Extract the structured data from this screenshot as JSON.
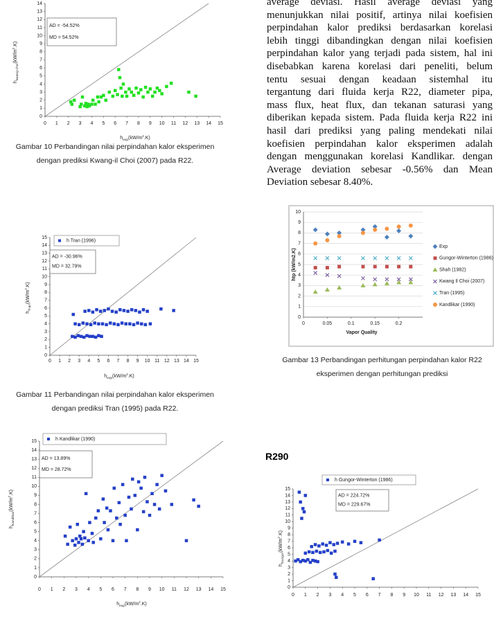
{
  "paragraph": [
    "average deviasi. Hasil average deviasi yang",
    "menunjukkan nilai positif, artinya nilai koefisien",
    "perpindahan kalor prediksi berdasarkan korelasi",
    "lebih tinggi dibandingkan dengan nilai koefisien",
    "perpindahan kalor yang terjadi pada sistem, hal ini",
    "disebabkan karena korelasi dari peneliti, belum",
    "tentu sesuai dengan keadaan sistemhal itu",
    "tergantung dari fluida kerja R22, diameter pipa,",
    "mass flux, heat flux, dan tekanan saturasi yang",
    "diberikan kepada sistem. Pada fluida kerja R22 ini",
    "hasil dari prediksi yang paling mendekati nilai",
    "koefisien perpindahan kalor eksperimen adalah",
    "dengan menggunakan korelasi Kandlikar. dengan",
    "Average deviation sebesar -0.56% dan Mean",
    "Deviation sebesar 8.40%."
  ],
  "captions": [
    [
      "Gambar 10 Perbandingan nilai perpindahan kalor eksperimen",
      "dengan prediksi Kwang-il Choi (2007) pada R22."
    ],
    [
      "Gambar 11 Perbandingan nilai perpindahan kalor eksperimen",
      "dengan prediksi Tran (1995) pada R22."
    ],
    [
      "Gambar 13 Perbandingan perhitungan perpindahan kalor R22",
      "eksperimen dengan perhitungan prediksi"
    ]
  ],
  "heading": "R290",
  "chart_data": [
    {
      "type": "scatter",
      "xlabel": [
        "h",
        "exp",
        "(kW/m",
        "2",
        ".K)"
      ],
      "ylabel": [
        "h",
        "kwang-choi",
        "(kW/m",
        "2",
        ".K)"
      ],
      "annotations": [
        "AD = -54.52%",
        "MD = 54.52%"
      ],
      "xlim": [
        0,
        15
      ],
      "ylim": [
        0,
        14
      ],
      "xticks": [
        0,
        1,
        2,
        3,
        4,
        5,
        6,
        7,
        8,
        9,
        10,
        11,
        12,
        13,
        14,
        15
      ],
      "yticks": [
        0,
        1,
        2,
        3,
        4,
        5,
        6,
        7,
        8,
        9,
        10,
        11,
        12,
        13,
        14
      ],
      "diagonal": true,
      "grid": false,
      "series": [
        {
          "color": "#22e022",
          "marker": "square",
          "x": [
            2.2,
            2.3,
            2.5,
            3.0,
            3.1,
            3.2,
            3.4,
            3.5,
            3.6,
            3.7,
            3.8,
            4.0,
            4.1,
            4.3,
            4.5,
            4.6,
            4.8,
            5.0,
            5.2,
            5.5,
            5.8,
            6.0,
            6.2,
            6.3,
            6.4,
            6.5,
            6.6,
            6.7,
            6.9,
            7.0,
            7.2,
            7.4,
            7.6,
            7.8,
            8.0,
            8.2,
            8.4,
            8.6,
            8.8,
            9.0,
            9.2,
            9.4,
            9.6,
            9.8,
            10.0,
            10.4,
            10.8,
            12.3,
            12.9
          ],
          "y": [
            1.8,
            1.5,
            2.0,
            1.2,
            1.5,
            2.4,
            1.3,
            1.6,
            1.2,
            1.5,
            1.3,
            1.5,
            2.0,
            1.5,
            2.4,
            1.8,
            2.4,
            2.6,
            2.0,
            3.0,
            2.5,
            3.2,
            2.7,
            5.8,
            4.8,
            3.5,
            2.5,
            4.0,
            3.0,
            2.5,
            3.4,
            3.0,
            2.6,
            3.5,
            2.9,
            3.3,
            2.4,
            3.6,
            3.0,
            3.4,
            2.5,
            3.0,
            3.5,
            3.2,
            2.8,
            3.7,
            4.1,
            3.0,
            2.5
          ]
        }
      ]
    },
    {
      "type": "scatter",
      "xlabel": [
        "h",
        "exp",
        "(kW/m",
        "2",
        ".K)"
      ],
      "ylabel": [
        "h",
        "Tran",
        "(kW/m",
        "2",
        ".K)"
      ],
      "annotations": [
        "AD = -30.96%",
        "MD = 32.79%"
      ],
      "xlim": [
        0,
        15
      ],
      "ylim": [
        0,
        15
      ],
      "xticks": [
        0,
        1,
        2,
        3,
        4,
        5,
        6,
        7,
        8,
        9,
        10,
        11,
        12,
        13,
        14,
        15
      ],
      "yticks": [
        0,
        1,
        2,
        3,
        4,
        5,
        6,
        7,
        8,
        9,
        10,
        11,
        12,
        13,
        14,
        15
      ],
      "diagonal": true,
      "grid": false,
      "series": [
        {
          "name": "h Tran (1996)",
          "color": "#2440c8",
          "marker": "square",
          "x": [
            2.3,
            2.6,
            2.9,
            3.2,
            3.5,
            3.8,
            4.1,
            4.4,
            4.7,
            5.0,
            5.3,
            2.6,
            3.0,
            3.4,
            3.8,
            4.2,
            4.6,
            5.0,
            5.4,
            5.8,
            6.2,
            6.6,
            7.0,
            7.4,
            7.8,
            8.2,
            8.6,
            9.0,
            9.4,
            9.8,
            10.3,
            2.4,
            3.6,
            4.0,
            4.4,
            4.8,
            5.2,
            5.6,
            6.0,
            6.4,
            6.8,
            7.2,
            7.6,
            8.0,
            8.4,
            8.8,
            9.2,
            9.6,
            10.0,
            11.4,
            12.7
          ],
          "y": [
            2.4,
            2.3,
            2.5,
            2.4,
            2.3,
            2.5,
            2.4,
            2.4,
            2.3,
            2.5,
            2.4,
            4.0,
            3.9,
            4.1,
            4.0,
            3.9,
            4.1,
            4.0,
            4.0,
            3.9,
            4.1,
            4.0,
            3.9,
            4.1,
            4.0,
            4.0,
            3.9,
            4.1,
            4.0,
            3.9,
            4.0,
            5.2,
            5.6,
            5.7,
            5.5,
            5.8,
            5.6,
            5.7,
            5.9,
            5.6,
            5.5,
            5.8,
            5.7,
            5.6,
            5.8,
            5.7,
            5.5,
            5.8,
            5.6,
            5.9,
            5.7
          ]
        }
      ]
    },
    {
      "type": "scatter",
      "xlabel": "Vapor Quality",
      "ylabel": "htp (kW/m2.K)",
      "xlim": [
        0,
        0.25
      ],
      "ylim": [
        0,
        10
      ],
      "xticks": [
        0,
        0.05,
        0.1,
        0.15,
        0.2
      ],
      "yticks": [
        0,
        1,
        2,
        3,
        4,
        5,
        6,
        7,
        8,
        9,
        10
      ],
      "grid": true,
      "legend": "right",
      "frame": true,
      "x": [
        0.025,
        0.05,
        0.075,
        0.125,
        0.15,
        0.175,
        0.2,
        0.225
      ],
      "series": [
        {
          "name": "Exp",
          "color": "#4f81bd",
          "marker": "diamond",
          "values": [
            8.3,
            7.9,
            8.0,
            8.3,
            8.6,
            7.6,
            8.2,
            7.7
          ]
        },
        {
          "name": "Gungor-Winterton (1986)",
          "color": "#c0504d",
          "marker": "square",
          "values": [
            4.7,
            4.7,
            4.8,
            4.8,
            4.8,
            4.8,
            4.8,
            4.8
          ]
        },
        {
          "name": "Shah (1982)",
          "color": "#9bbb59",
          "marker": "triangle",
          "values": [
            2.4,
            2.6,
            2.8,
            3.0,
            3.1,
            3.2,
            3.3,
            3.3
          ]
        },
        {
          "name": "Kwang Il Choi (2007)",
          "color": "#8064a2",
          "marker": "cross",
          "values": [
            4.2,
            4.0,
            3.9,
            3.7,
            3.6,
            3.6,
            3.6,
            3.6
          ]
        },
        {
          "name": "Tran (1995)",
          "color": "#4bacc6",
          "marker": "cross",
          "values": [
            5.6,
            5.6,
            5.6,
            5.6,
            5.6,
            5.6,
            5.6,
            5.6
          ]
        },
        {
          "name": "Kandlikar (1990)",
          "color": "#f79646",
          "marker": "circle",
          "values": [
            7.0,
            7.3,
            7.7,
            8.0,
            8.3,
            8.4,
            8.6,
            8.7
          ]
        }
      ]
    },
    {
      "type": "scatter",
      "xlabel": [
        "h",
        "exp",
        "(kW/m",
        "2",
        ".K)"
      ],
      "ylabel": [
        "h",
        "Kandlikar",
        "(kW/m",
        "2",
        ".K)"
      ],
      "annotations": [
        "AD = 13.89%",
        "MD = 28.72%"
      ],
      "xlim": [
        0,
        15
      ],
      "ylim": [
        0,
        15
      ],
      "xticks": [
        0,
        1,
        2,
        3,
        4,
        5,
        6,
        7,
        8,
        9,
        10,
        11,
        12,
        13,
        14,
        15
      ],
      "yticks": [
        0,
        1,
        2,
        3,
        4,
        5,
        6,
        7,
        8,
        9,
        10,
        11,
        12,
        13,
        14,
        15
      ],
      "diagonal": true,
      "grid": false,
      "series": [
        {
          "name": "h Kandlikar (1990)",
          "color": "#2440c8",
          "marker": "square",
          "x": [
            2.1,
            2.3,
            2.5,
            2.7,
            2.9,
            3.0,
            3.1,
            3.2,
            3.3,
            3.4,
            3.5,
            3.6,
            3.7,
            3.8,
            4.0,
            4.1,
            4.3,
            4.4,
            4.6,
            4.8,
            5.0,
            5.2,
            5.3,
            5.5,
            5.6,
            5.8,
            6.0,
            6.1,
            6.3,
            6.5,
            6.6,
            6.8,
            7.0,
            7.1,
            7.3,
            7.5,
            7.6,
            7.8,
            8.0,
            8.1,
            8.3,
            8.5,
            8.6,
            8.8,
            9.0,
            9.2,
            9.4,
            9.6,
            9.8,
            10.0,
            10.3,
            10.8,
            12.0,
            12.6,
            13.0
          ],
          "y": [
            4.5,
            3.6,
            5.5,
            4.0,
            3.5,
            4.2,
            5.8,
            3.8,
            4.5,
            4.2,
            3.6,
            5.0,
            4.3,
            9.2,
            4.0,
            6.0,
            4.8,
            3.8,
            6.5,
            7.3,
            4.2,
            8.6,
            6.0,
            7.6,
            5.2,
            7.3,
            4.0,
            9.8,
            6.5,
            8.2,
            5.8,
            10.2,
            6.8,
            4.0,
            8.8,
            7.5,
            10.8,
            9.0,
            5.2,
            10.5,
            9.8,
            7.2,
            11.0,
            8.3,
            6.8,
            9.2,
            8.0,
            10.2,
            7.5,
            11.2,
            9.5,
            8.0,
            4.0,
            8.5,
            7.8
          ]
        }
      ]
    },
    {
      "type": "scatter",
      "ylabel": [
        "h",
        "Gungor",
        "(kW/m",
        "2",
        ".K)"
      ],
      "annotations": [
        "AD = 224.72%",
        "MD = 229.67%"
      ],
      "xlim": [
        0,
        15
      ],
      "ylim": [
        0,
        15
      ],
      "xticks": [
        0,
        1,
        2,
        3,
        4,
        5,
        6,
        7,
        8,
        9,
        10,
        11,
        12,
        13,
        14,
        15
      ],
      "yticks": [
        0,
        1,
        2,
        3,
        4,
        5,
        6,
        7,
        8,
        9,
        10,
        11,
        12,
        13,
        14,
        15
      ],
      "diagonal": true,
      "grid": false,
      "series": [
        {
          "name": "h Gungor-Winterton (1986)",
          "color": "#2440c8",
          "marker": "square",
          "x": [
            0.5,
            0.6,
            0.7,
            0.8,
            0.9,
            1.0,
            0.2,
            0.4,
            0.6,
            0.8,
            1.0,
            1.2,
            1.4,
            1.6,
            1.8,
            2.0,
            1.0,
            1.3,
            1.6,
            1.9,
            2.2,
            2.5,
            2.8,
            3.1,
            3.4,
            1.5,
            1.8,
            2.1,
            2.4,
            2.7,
            3.0,
            3.3,
            3.6,
            4.0,
            4.5,
            5.0,
            5.5,
            7.0,
            3.4,
            3.5,
            6.5
          ],
          "y": [
            14.5,
            13.0,
            10.5,
            12.0,
            11.5,
            14.0,
            4.0,
            4.2,
            3.9,
            4.1,
            4.0,
            4.2,
            3.8,
            4.1,
            4.0,
            3.9,
            5.2,
            5.4,
            5.3,
            5.5,
            5.3,
            5.4,
            5.6,
            5.2,
            5.5,
            6.2,
            6.5,
            6.3,
            6.6,
            6.4,
            6.8,
            6.5,
            6.7,
            6.9,
            6.6,
            7.0,
            6.8,
            7.2,
            2.0,
            1.5,
            1.3
          ]
        }
      ]
    }
  ]
}
